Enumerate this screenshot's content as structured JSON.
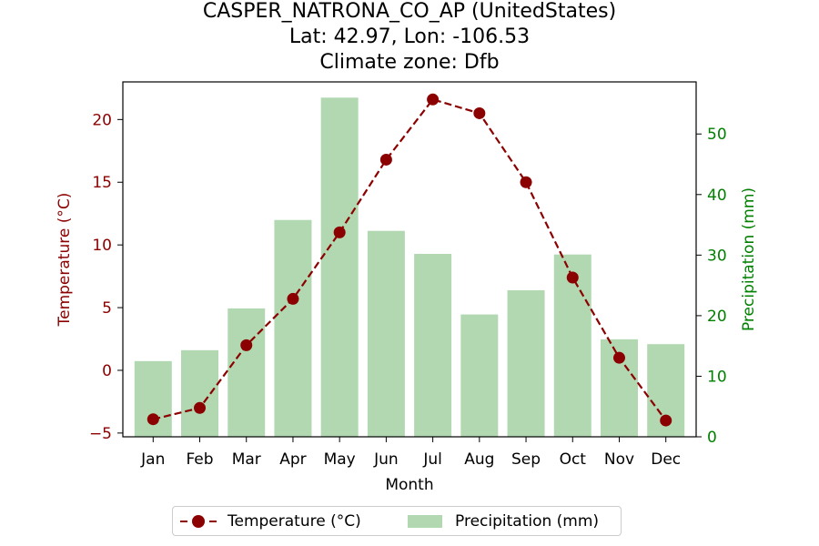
{
  "title": {
    "line1": "CASPER_NATRONA_CO_AP (UnitedStates)",
    "line2": "Lat: 42.97, Lon: -106.53",
    "line3": "Climate zone: Dfb"
  },
  "legend": {
    "temperature": "Temperature (°C)",
    "precipitation": "Precipitation (mm)"
  },
  "colors": {
    "temperature": "#8b0000",
    "precipitation": "#b1d8b1",
    "precip_axis": "#008000"
  },
  "chart_data": {
    "type": "bar",
    "categories": [
      "Jan",
      "Feb",
      "Mar",
      "Apr",
      "May",
      "Jun",
      "Jul",
      "Aug",
      "Sep",
      "Oct",
      "Nov",
      "Dec"
    ],
    "xlabel": "Month",
    "ylabel_left": "Temperature (°C)",
    "ylabel_right": "Precipitation (mm)",
    "ylim_left": [
      -5.3,
      23.0
    ],
    "ylim_right": [
      0,
      58.6
    ],
    "yticks_left": [
      -5,
      0,
      5,
      10,
      15,
      20
    ],
    "yticks_right": [
      0,
      10,
      20,
      30,
      40,
      50
    ],
    "series": [
      {
        "name": "Precipitation (mm)",
        "type": "bar",
        "axis": "right",
        "values": [
          12.5,
          14.3,
          21.2,
          35.8,
          56.0,
          34.0,
          30.2,
          20.2,
          24.2,
          30.1,
          16.1,
          15.3
        ]
      },
      {
        "name": "Temperature (°C)",
        "type": "line",
        "axis": "left",
        "values": [
          -3.9,
          -3.0,
          2.0,
          5.7,
          11.0,
          16.8,
          21.6,
          20.5,
          15.0,
          7.4,
          1.0,
          -4.0
        ]
      }
    ],
    "grid": false,
    "legend_position": "bottom-center"
  }
}
